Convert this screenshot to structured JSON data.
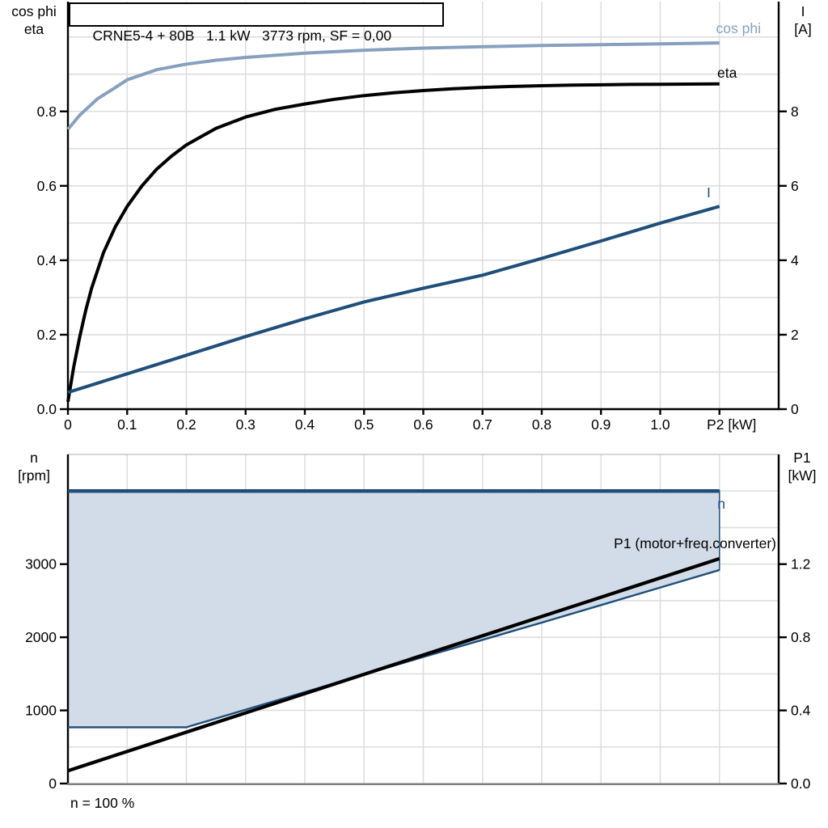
{
  "title": "CRNE5-4 + 80B   1.1 kW   3773 rpm, SF = 0,00",
  "footnote": "n = 100 %",
  "colors": {
    "dark_blue": "#1F4E79",
    "light_blue": "#87A0BE",
    "area_fill": "#D2DCE8",
    "grid": "#DCDCDC",
    "axis_black": "#000000",
    "axis_gray": "#808080",
    "border_gray": "#C9C9C9",
    "background": "#FFFFFF"
  },
  "chart_data": [
    {
      "type": "line",
      "title": "CRNE5-4 + 80B   1.1 kW   3773 rpm, SF = 0,00",
      "x_axis": {
        "label": "P2 [kW]",
        "range": [
          0,
          1.2
        ],
        "grid_step": 0.1,
        "ticks": [
          0,
          0.1,
          0.2,
          0.3,
          0.4,
          0.5,
          0.6,
          0.7,
          0.8,
          0.9,
          1.0,
          1.1
        ],
        "tick_labels": [
          "0",
          "0.1",
          "0.2",
          "0.3",
          "0.4",
          "0.5",
          "0.6",
          "0.7",
          "0.8",
          "0.9",
          "1.0",
          "P2 [kW]"
        ]
      },
      "left_axis": {
        "label_lines": [
          "cos phi",
          "eta"
        ],
        "range": [
          0,
          1.095
        ],
        "grid_step": 0.1,
        "ticks": [
          0,
          0.2,
          0.4,
          0.6,
          0.8
        ],
        "tick_labels": [
          "0.0",
          "0.2",
          "0.4",
          "0.6",
          "0.8"
        ]
      },
      "right_axis": {
        "label_lines": [
          "I",
          "[A]"
        ],
        "range": [
          0,
          10.95
        ],
        "ticks": [
          0,
          2,
          4,
          6,
          8
        ],
        "tick_labels": [
          "0",
          "2",
          "4",
          "6",
          "8"
        ]
      },
      "series": [
        {
          "name": "cos phi",
          "axis": "left",
          "color": "#87A0BE",
          "stroke_width": 4,
          "points": [
            [
              0,
              0.752
            ],
            [
              0.02,
              0.79
            ],
            [
              0.05,
              0.834
            ],
            [
              0.08,
              0.864
            ],
            [
              0.1,
              0.885
            ],
            [
              0.15,
              0.912
            ],
            [
              0.2,
              0.927
            ],
            [
              0.25,
              0.9375
            ],
            [
              0.3,
              0.945
            ],
            [
              0.4,
              0.9565
            ],
            [
              0.5,
              0.9645
            ],
            [
              0.6,
              0.97
            ],
            [
              0.7,
              0.974
            ],
            [
              0.8,
              0.977
            ],
            [
              0.9,
              0.9795
            ],
            [
              1.0,
              0.9815
            ],
            [
              1.1,
              0.984
            ]
          ]
        },
        {
          "name": "eta",
          "axis": "left",
          "color": "#000000",
          "stroke_width": 4,
          "points": [
            [
              0,
              0.02
            ],
            [
              0.01,
              0.115
            ],
            [
              0.02,
              0.195
            ],
            [
              0.03,
              0.265
            ],
            [
              0.04,
              0.325
            ],
            [
              0.06,
              0.42
            ],
            [
              0.08,
              0.49
            ],
            [
              0.1,
              0.545
            ],
            [
              0.125,
              0.6
            ],
            [
              0.15,
              0.645
            ],
            [
              0.175,
              0.68
            ],
            [
              0.2,
              0.71
            ],
            [
              0.25,
              0.7545
            ],
            [
              0.3,
              0.785
            ],
            [
              0.35,
              0.8055
            ],
            [
              0.4,
              0.82
            ],
            [
              0.45,
              0.8325
            ],
            [
              0.5,
              0.8425
            ],
            [
              0.55,
              0.85
            ],
            [
              0.6,
              0.856
            ],
            [
              0.65,
              0.861
            ],
            [
              0.7,
              0.8645
            ],
            [
              0.75,
              0.867
            ],
            [
              0.8,
              0.869
            ],
            [
              0.85,
              0.8705
            ],
            [
              0.9,
              0.8715
            ],
            [
              0.95,
              0.8725
            ],
            [
              1.0,
              0.873
            ],
            [
              1.1,
              0.874
            ]
          ]
        },
        {
          "name": "I",
          "axis": "right",
          "color": "#1F4E79",
          "stroke_width": 4,
          "points": [
            [
              0,
              0.45
            ],
            [
              0.1,
              0.95
            ],
            [
              0.2,
              1.45
            ],
            [
              0.3,
              1.95
            ],
            [
              0.4,
              2.43
            ],
            [
              0.5,
              2.88
            ],
            [
              0.6,
              3.25
            ],
            [
              0.7,
              3.6
            ],
            [
              0.8,
              4.05
            ],
            [
              0.9,
              4.52
            ],
            [
              1.0,
              5.0
            ],
            [
              1.1,
              5.45
            ]
          ]
        }
      ]
    },
    {
      "type": "line",
      "annotation": "n = 100 %",
      "x_axis": {
        "label": "",
        "range": [
          0,
          1.2
        ],
        "grid_step": 0.1,
        "ticks": [],
        "tick_labels": []
      },
      "left_axis": {
        "label_lines": [
          "n",
          "[rpm]"
        ],
        "range": [
          0,
          4500
        ],
        "grid_step": 500,
        "ticks": [
          0,
          1000,
          2000,
          3000
        ],
        "tick_labels": [
          "0",
          "1000",
          "2000",
          "3000"
        ]
      },
      "right_axis": {
        "label_lines": [
          "P1",
          "[kW]"
        ],
        "range": [
          0,
          1.8
        ],
        "ticks": [
          0,
          0.4,
          0.8,
          1.2
        ],
        "tick_labels": [
          "0.0",
          "0.4",
          "0.8",
          "1.2"
        ]
      },
      "operating_area": {
        "fill": "#D2DCE8",
        "upper_rpm": 4000,
        "x_start": 0,
        "x_end": 1.1,
        "lower_boundary_points": [
          [
            0,
            770
          ],
          [
            0.2,
            770
          ],
          [
            0.3,
            1010
          ],
          [
            0.4,
            1250
          ],
          [
            0.5,
            1490
          ],
          [
            0.6,
            1730
          ],
          [
            0.7,
            1965
          ],
          [
            0.8,
            2200
          ],
          [
            0.9,
            2440
          ],
          [
            1.0,
            2680
          ],
          [
            1.1,
            2920
          ]
        ]
      },
      "series": [
        {
          "name": "n",
          "axis": "left",
          "color": "#1F4E79",
          "stroke_width": 4.5,
          "points": [
            [
              0,
              4000
            ],
            [
              1.1,
              4000
            ]
          ]
        },
        {
          "name": "n min boundary",
          "axis": "left",
          "color": "#1F4E79",
          "stroke_width": 2.4,
          "points": [
            [
              0,
              770
            ],
            [
              0.2,
              770
            ],
            [
              0.3,
              1010
            ],
            [
              0.4,
              1250
            ],
            [
              0.5,
              1490
            ],
            [
              0.6,
              1730
            ],
            [
              0.7,
              1965
            ],
            [
              0.8,
              2200
            ],
            [
              0.9,
              2440
            ],
            [
              1.0,
              2680
            ],
            [
              1.1,
              2920
            ]
          ]
        },
        {
          "name": "P1 (motor+freq.converter)",
          "axis": "right",
          "color": "#000000",
          "stroke_width": 4.2,
          "points": [
            [
              0,
              0.07
            ],
            [
              0.55,
              0.65
            ],
            [
              1.1,
              1.23
            ]
          ]
        }
      ]
    }
  ]
}
